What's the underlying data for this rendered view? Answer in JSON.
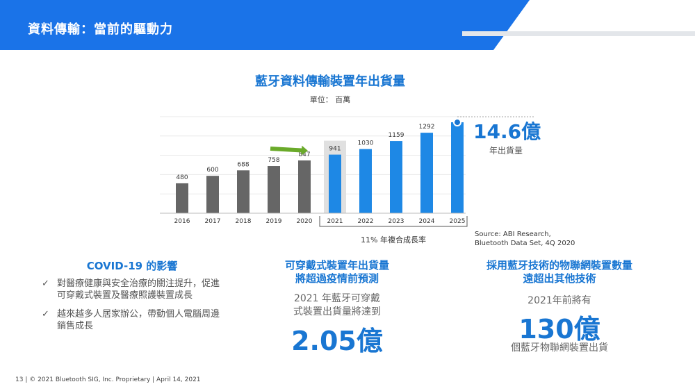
{
  "colors": {
    "banner": "#1a73e8",
    "accent_blue": "#1976d2",
    "bar_past": "#666666",
    "bar_forecast": "#1e88e5",
    "arrow_green": "#6aaa2a",
    "highlight": "#e0e0e0"
  },
  "header": {
    "title": "資料傳輸：當前的驅動力"
  },
  "chart": {
    "title": "藍牙資料傳輸裝置年出貨量",
    "unit": "單位： 百萬",
    "big_value": "14.6億",
    "big_caption": "年出貨量",
    "cagr": "11% 年複合成長率",
    "source_line1": "Source: ABI Research,",
    "source_line2": "Bluetooth Data Set, 4Q 2020"
  },
  "chart_data": {
    "type": "bar",
    "title": "藍牙資料傳輸裝置年出貨量",
    "ylabel": "單位： 百萬",
    "categories": [
      "2016",
      "2017",
      "2018",
      "2019",
      "2020",
      "2021",
      "2022",
      "2023",
      "2024",
      "2025"
    ],
    "values": [
      480,
      600,
      688,
      758,
      847,
      941,
      1030,
      1159,
      1292,
      1460
    ],
    "labels": [
      "480",
      "600",
      "688",
      "758",
      "847",
      "941",
      "1030",
      "1159",
      "1292",
      ""
    ],
    "forecast_from": "2021",
    "ylim": [
      0,
      1550
    ],
    "grid": true
  },
  "covid": {
    "title": "COVID-19 的影響",
    "check_icon": "check-icon",
    "bullets": [
      "對醫療健康與安全治療的關注提升，促進可穿戴式裝置及醫療照護裝置成長",
      "越來越多人居家辦公，帶動個人電腦周邊銷售成長"
    ]
  },
  "wearables": {
    "title_line1": "可穿戴式裝置年出貨量",
    "title_line2": "將超過疫情前預測",
    "text_line1": "2021 年藍牙可穿戴",
    "text_line2": "式裝置出貨量將達到",
    "big_value": "2.05億"
  },
  "iot": {
    "title_line1": "採用藍牙技術的物聯網裝置數量",
    "title_line2": "遠超出其他技術",
    "text_line1": "2021年前將有",
    "big_value": "130億",
    "text_line2": "個藍牙物聯網裝置出貨"
  },
  "footer": {
    "text": "13  |  © 2021 Bluetooth SIG, Inc. Proprietary  |  April 14, 2021"
  }
}
